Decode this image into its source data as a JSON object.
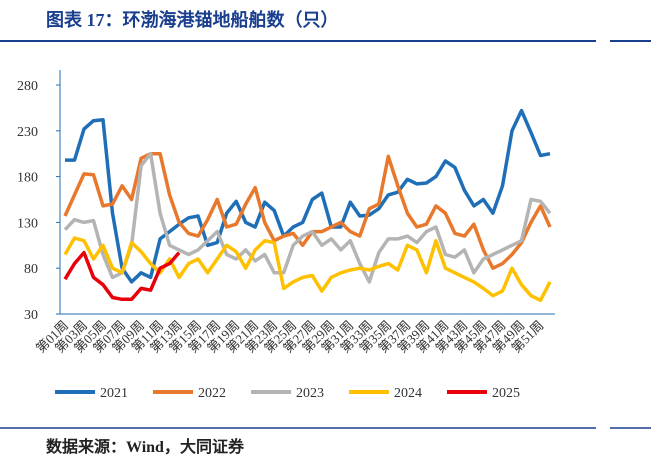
{
  "title": "图表 17：环渤海港锚地船舶数（只）",
  "source": "数据来源：Wind，大同证券",
  "chart_data": {
    "type": "line",
    "categories": [
      "第01周",
      null,
      "第03周",
      null,
      "第05周",
      null,
      "第07周",
      null,
      "第09周",
      null,
      "第11周",
      null,
      "第13周",
      null,
      "第15周",
      null,
      "第17周",
      null,
      "第19周",
      null,
      "第21周",
      null,
      "第23周",
      null,
      "第25周",
      null,
      "第27周",
      null,
      "第29周",
      null,
      "第31周",
      null,
      "第33周",
      null,
      "第35周",
      null,
      "第37周",
      null,
      "第39周",
      null,
      "第41周",
      null,
      "第43周",
      null,
      "第45周",
      null,
      "第47周",
      null,
      "第49周",
      null,
      "第51周",
      null
    ],
    "ylim": [
      30,
      280
    ],
    "yticks": [
      30,
      80,
      130,
      180,
      230,
      280
    ],
    "series": [
      {
        "name": "2021",
        "color": "#1f6fb8",
        "values": [
          198,
          198,
          232,
          241,
          242,
          140,
          80,
          65,
          75,
          70,
          112,
          120,
          128,
          135,
          137,
          105,
          108,
          140,
          153,
          130,
          125,
          152,
          143,
          115,
          125,
          130,
          155,
          162,
          125,
          125,
          152,
          137,
          138,
          145,
          160,
          163,
          177,
          172,
          173,
          180,
          197,
          190,
          165,
          148,
          155,
          140,
          170,
          230,
          252,
          228,
          203,
          205
        ]
      },
      {
        "name": "2022",
        "color": "#e8782c",
        "values": [
          137,
          160,
          183,
          182,
          148,
          150,
          170,
          155,
          200,
          205,
          205,
          160,
          130,
          118,
          115,
          133,
          155,
          125,
          128,
          150,
          168,
          130,
          110,
          115,
          118,
          105,
          120,
          120,
          125,
          130,
          120,
          115,
          145,
          150,
          202,
          170,
          140,
          125,
          128,
          148,
          140,
          118,
          115,
          128,
          100,
          80,
          85,
          95,
          108,
          130,
          148,
          125
        ]
      },
      {
        "name": "2023",
        "color": "#b4b4b4",
        "values": [
          122,
          133,
          130,
          132,
          95,
          70,
          75,
          105,
          192,
          205,
          140,
          105,
          100,
          95,
          100,
          110,
          120,
          95,
          90,
          100,
          88,
          95,
          75,
          75,
          105,
          115,
          120,
          105,
          112,
          100,
          110,
          85,
          65,
          97,
          112,
          112,
          115,
          108,
          120,
          125,
          95,
          92,
          100,
          75,
          90,
          95,
          100,
          105,
          110,
          155,
          153,
          140
        ]
      },
      {
        "name": "2024",
        "color": "#ffc000",
        "values": [
          95,
          113,
          110,
          90,
          105,
          80,
          75,
          108,
          98,
          85,
          75,
          90,
          70,
          85,
          90,
          75,
          90,
          105,
          98,
          80,
          100,
          110,
          108,
          58,
          65,
          70,
          72,
          55,
          70,
          75,
          78,
          80,
          78,
          82,
          85,
          78,
          105,
          100,
          75,
          110,
          80,
          75,
          70,
          65,
          58,
          50,
          55,
          80,
          62,
          50,
          45,
          65
        ]
      },
      {
        "name": "2025",
        "color": "#e8000b",
        "values": [
          68,
          85,
          97,
          70,
          62,
          48,
          46,
          46,
          58,
          56,
          80,
          85,
          97,
          null,
          null,
          null,
          null,
          null,
          null,
          null,
          null,
          null,
          null,
          null,
          null,
          null,
          null,
          null,
          null,
          null,
          null,
          null,
          null,
          null,
          null,
          null,
          null,
          null,
          null,
          null,
          null,
          null,
          null,
          null,
          null,
          null,
          null,
          null,
          null,
          null,
          null,
          null
        ]
      }
    ]
  }
}
